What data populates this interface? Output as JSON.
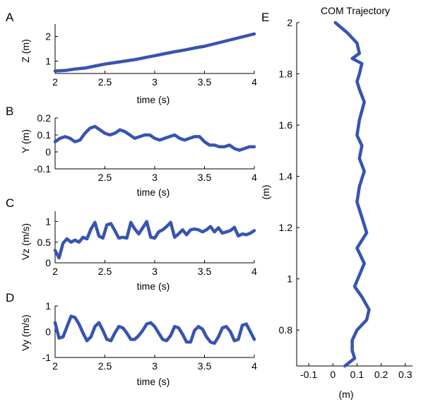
{
  "colors": {
    "series": "#3754b0",
    "axis": "#000000"
  },
  "chart_data": [
    {
      "type": "line",
      "panel": "A",
      "xlabel": "time (s)",
      "ylabel": "Z (m)",
      "xlim": [
        2,
        4
      ],
      "ylim": [
        0.5,
        2.5
      ],
      "xticks": [
        2,
        2.5,
        3,
        3.5,
        4
      ],
      "xtick_labels": [
        "2",
        "2.5",
        "3",
        "3.5",
        "4"
      ],
      "yticks": [
        1,
        2
      ],
      "ytick_labels": [
        "1",
        "2"
      ],
      "x": [
        2.0,
        2.1,
        2.2,
        2.3,
        2.4,
        2.5,
        2.6,
        2.7,
        2.8,
        2.9,
        3.0,
        3.1,
        3.2,
        3.3,
        3.4,
        3.5,
        3.6,
        3.7,
        3.8,
        3.9,
        4.0
      ],
      "y": [
        0.6,
        0.62,
        0.68,
        0.72,
        0.8,
        0.88,
        0.94,
        1.0,
        1.06,
        1.14,
        1.22,
        1.3,
        1.38,
        1.45,
        1.53,
        1.6,
        1.7,
        1.8,
        1.9,
        2.0,
        2.1
      ]
    },
    {
      "type": "line",
      "panel": "B",
      "xlabel": "time (s)",
      "ylabel": "Y (m)",
      "xlim": [
        2,
        4
      ],
      "ylim": [
        -0.1,
        0.2
      ],
      "xticks": [
        2.5,
        3,
        3.5,
        4
      ],
      "xtick_labels": [
        "2.5",
        "3",
        "3.5",
        "4"
      ],
      "yticks": [
        -0.1,
        0,
        0.1,
        0.2
      ],
      "ytick_labels": [
        "-0.1",
        "0",
        "0.1",
        "0.2"
      ],
      "x": [
        2.0,
        2.05,
        2.1,
        2.15,
        2.2,
        2.25,
        2.3,
        2.35,
        2.4,
        2.45,
        2.5,
        2.55,
        2.6,
        2.65,
        2.7,
        2.75,
        2.8,
        2.85,
        2.9,
        2.95,
        3.0,
        3.05,
        3.1,
        3.15,
        3.2,
        3.25,
        3.3,
        3.35,
        3.4,
        3.45,
        3.5,
        3.55,
        3.6,
        3.65,
        3.7,
        3.75,
        3.8,
        3.85,
        3.9,
        3.95,
        4.0
      ],
      "y": [
        0.06,
        0.08,
        0.09,
        0.08,
        0.06,
        0.07,
        0.11,
        0.14,
        0.15,
        0.13,
        0.11,
        0.1,
        0.11,
        0.13,
        0.12,
        0.1,
        0.08,
        0.09,
        0.1,
        0.1,
        0.08,
        0.07,
        0.08,
        0.09,
        0.1,
        0.08,
        0.07,
        0.08,
        0.09,
        0.09,
        0.06,
        0.04,
        0.04,
        0.03,
        0.03,
        0.04,
        0.02,
        0.01,
        0.02,
        0.03,
        0.03
      ]
    },
    {
      "type": "line",
      "panel": "C",
      "xlabel": "time (s)",
      "ylabel": "Vz (m/s)",
      "xlim": [
        2,
        4
      ],
      "ylim": [
        0,
        1.25
      ],
      "xticks": [
        2,
        2.5,
        3,
        3.5,
        4
      ],
      "xtick_labels": [
        "2",
        "2.5",
        "3",
        "3.5",
        "4"
      ],
      "yticks": [
        0,
        0.5,
        1
      ],
      "ytick_labels": [
        "0",
        "0.5",
        "1"
      ],
      "x": [
        2.0,
        2.04,
        2.08,
        2.12,
        2.16,
        2.2,
        2.24,
        2.28,
        2.32,
        2.36,
        2.4,
        2.44,
        2.48,
        2.52,
        2.56,
        2.6,
        2.64,
        2.68,
        2.72,
        2.76,
        2.8,
        2.84,
        2.88,
        2.92,
        2.96,
        3.0,
        3.04,
        3.08,
        3.12,
        3.16,
        3.2,
        3.24,
        3.28,
        3.32,
        3.36,
        3.4,
        3.44,
        3.48,
        3.52,
        3.56,
        3.6,
        3.64,
        3.68,
        3.72,
        3.76,
        3.8,
        3.84,
        3.88,
        3.92,
        3.96,
        4.0
      ],
      "y": [
        0.3,
        0.12,
        0.48,
        0.58,
        0.5,
        0.55,
        0.5,
        0.62,
        0.58,
        0.82,
        0.98,
        0.65,
        0.6,
        0.92,
        0.95,
        0.78,
        0.6,
        0.62,
        0.6,
        0.98,
        0.82,
        0.7,
        0.85,
        1.0,
        0.62,
        0.6,
        0.75,
        0.8,
        0.88,
        0.98,
        0.62,
        0.7,
        0.8,
        0.68,
        0.8,
        0.82,
        0.8,
        0.75,
        0.8,
        0.88,
        0.75,
        0.85,
        0.72,
        0.75,
        0.78,
        0.86,
        0.65,
        0.7,
        0.68,
        0.72,
        0.78
      ]
    },
    {
      "type": "line",
      "panel": "D",
      "xlabel": "time (s)",
      "ylabel": "Vy (m/s)",
      "xlim": [
        2,
        4
      ],
      "ylim": [
        -1,
        1
      ],
      "xticks": [
        2,
        2.5,
        3,
        3.5,
        4
      ],
      "xtick_labels": [
        "2",
        "2.5",
        "3",
        "3.5",
        "4"
      ],
      "yticks": [
        -1,
        0,
        1
      ],
      "ytick_labels": [
        "-1",
        "0",
        "1"
      ],
      "x": [
        2.0,
        2.04,
        2.08,
        2.12,
        2.16,
        2.2,
        2.24,
        2.28,
        2.32,
        2.36,
        2.4,
        2.44,
        2.48,
        2.52,
        2.56,
        2.6,
        2.64,
        2.68,
        2.72,
        2.76,
        2.8,
        2.84,
        2.88,
        2.92,
        2.96,
        3.0,
        3.04,
        3.08,
        3.12,
        3.16,
        3.2,
        3.24,
        3.28,
        3.32,
        3.36,
        3.4,
        3.44,
        3.48,
        3.52,
        3.56,
        3.6,
        3.64,
        3.68,
        3.72,
        3.76,
        3.8,
        3.84,
        3.88,
        3.92,
        3.96,
        4.0
      ],
      "y": [
        0.35,
        -0.25,
        -0.2,
        0.2,
        0.6,
        0.55,
        0.3,
        -0.05,
        -0.35,
        -0.2,
        0.2,
        0.35,
        0.05,
        -0.3,
        -0.35,
        -0.05,
        0.2,
        0.15,
        -0.05,
        -0.3,
        -0.3,
        -0.15,
        0.05,
        0.3,
        0.35,
        0.2,
        -0.05,
        -0.3,
        -0.35,
        -0.15,
        0.2,
        0.15,
        -0.1,
        -0.4,
        -0.4,
        0.05,
        0.2,
        0.1,
        -0.2,
        -0.4,
        -0.45,
        -0.2,
        0.15,
        0.2,
        0.0,
        -0.35,
        -0.3,
        0.25,
        0.3,
        0.0,
        -0.3
      ]
    },
    {
      "type": "line",
      "panel": "E",
      "title": "COM Trajectory",
      "xlabel": "(m)",
      "ylabel": "(m)",
      "xlim": [
        -0.15,
        0.33
      ],
      "ylim": [
        0.66,
        2.0
      ],
      "xticks": [
        -0.1,
        0,
        0.1,
        0.2,
        0.3
      ],
      "xtick_labels": [
        "-0.1",
        "0",
        "0.1",
        "0.2",
        "0.3"
      ],
      "yticks": [
        0.8,
        1,
        1.2,
        1.4,
        1.6,
        1.8,
        2
      ],
      "ytick_labels": [
        "0.8",
        "1",
        "1.2",
        "1.4",
        "1.6",
        "1.8",
        "2"
      ],
      "x": [
        0.05,
        0.09,
        0.08,
        0.08,
        0.1,
        0.14,
        0.15,
        0.12,
        0.09,
        0.13,
        0.1,
        0.14,
        0.12,
        0.1,
        0.11,
        0.13,
        0.11,
        0.12,
        0.1,
        0.11,
        0.13,
        0.11,
        0.1,
        0.11,
        0.12,
        0.08,
        0.11,
        0.1,
        0.06,
        0.01
      ],
      "y": [
        0.66,
        0.69,
        0.72,
        0.76,
        0.8,
        0.84,
        0.88,
        0.93,
        0.97,
        1.06,
        1.12,
        1.18,
        1.24,
        1.3,
        1.36,
        1.42,
        1.47,
        1.52,
        1.56,
        1.62,
        1.69,
        1.74,
        1.77,
        1.8,
        1.84,
        1.86,
        1.88,
        1.92,
        1.96,
        2.0
      ]
    }
  ]
}
